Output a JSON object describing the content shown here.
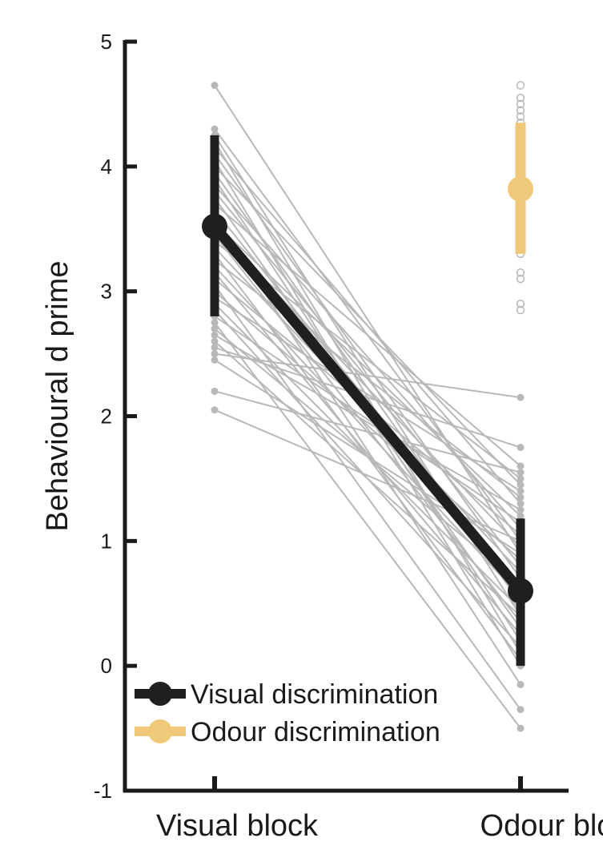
{
  "chart_data": {
    "type": "line",
    "title": "",
    "xlabel": "",
    "ylabel": "Behavioural d prime",
    "categories": [
      "Visual block",
      "Odour block"
    ],
    "ylim": [
      -1,
      5
    ],
    "yticks": [
      -1,
      0,
      1,
      2,
      3,
      4,
      5
    ],
    "grid": false,
    "legend": {
      "placement": "bottom-left",
      "entries": [
        {
          "label": "Visual discrimination",
          "color": "#1f1f1f"
        },
        {
          "label": "Odour discrimination",
          "color": "#f0c87a"
        }
      ]
    },
    "colors": {
      "visual": "#1f1f1f",
      "odour": "#f0c87a",
      "individual": "#b8b8b8",
      "axis": "#1a1a1a"
    },
    "series": [
      {
        "name": "Visual discrimination",
        "mean": [
          3.52,
          0.6
        ],
        "error": [
          [
            2.8,
            4.25
          ],
          [
            0.0,
            1.18
          ]
        ]
      },
      {
        "name": "Odour discrimination",
        "category": "Odour block",
        "mean": 3.82,
        "error": [
          3.3,
          4.35
        ],
        "points": [
          4.65,
          4.55,
          4.5,
          4.45,
          4.4,
          4.35,
          4.3,
          4.25,
          4.2,
          4.15,
          4.1,
          4.05,
          4.0,
          3.95,
          3.9,
          3.85,
          3.8,
          3.75,
          3.7,
          3.65,
          3.6,
          3.55,
          3.5,
          3.45,
          3.4,
          3.35,
          3.3,
          3.15,
          3.1,
          2.9,
          2.85
        ]
      }
    ],
    "individual_pairs": [
      [
        4.65,
        0.9
      ],
      [
        4.3,
        1.0
      ],
      [
        4.25,
        0.4
      ],
      [
        4.2,
        0.1
      ],
      [
        4.15,
        1.3
      ],
      [
        4.1,
        0.7
      ],
      [
        4.05,
        0.0
      ],
      [
        4.0,
        1.45
      ],
      [
        3.95,
        0.5
      ],
      [
        3.9,
        0.2
      ],
      [
        3.85,
        1.1
      ],
      [
        3.8,
        0.8
      ],
      [
        3.75,
        0.3
      ],
      [
        3.7,
        1.6
      ],
      [
        3.65,
        0.6
      ],
      [
        3.6,
        -0.15
      ],
      [
        3.55,
        1.2
      ],
      [
        3.5,
        0.95
      ],
      [
        3.45,
        0.35
      ],
      [
        3.4,
        1.5
      ],
      [
        3.35,
        0.75
      ],
      [
        3.3,
        0.05
      ],
      [
        3.25,
        1.35
      ],
      [
        3.2,
        0.55
      ],
      [
        3.15,
        0.25
      ],
      [
        3.1,
        1.05
      ],
      [
        3.05,
        -0.35
      ],
      [
        3.0,
        0.85
      ],
      [
        2.95,
        1.4
      ],
      [
        2.9,
        0.45
      ],
      [
        2.85,
        0.15
      ],
      [
        2.8,
        1.15
      ],
      [
        2.75,
        -0.5
      ],
      [
        2.7,
        0.65
      ],
      [
        2.65,
        1.25
      ],
      [
        2.6,
        0.4
      ],
      [
        2.55,
        1.75
      ],
      [
        2.5,
        2.15
      ],
      [
        2.45,
        0.9
      ],
      [
        2.2,
        1.55
      ],
      [
        2.05,
        1.0
      ]
    ]
  }
}
